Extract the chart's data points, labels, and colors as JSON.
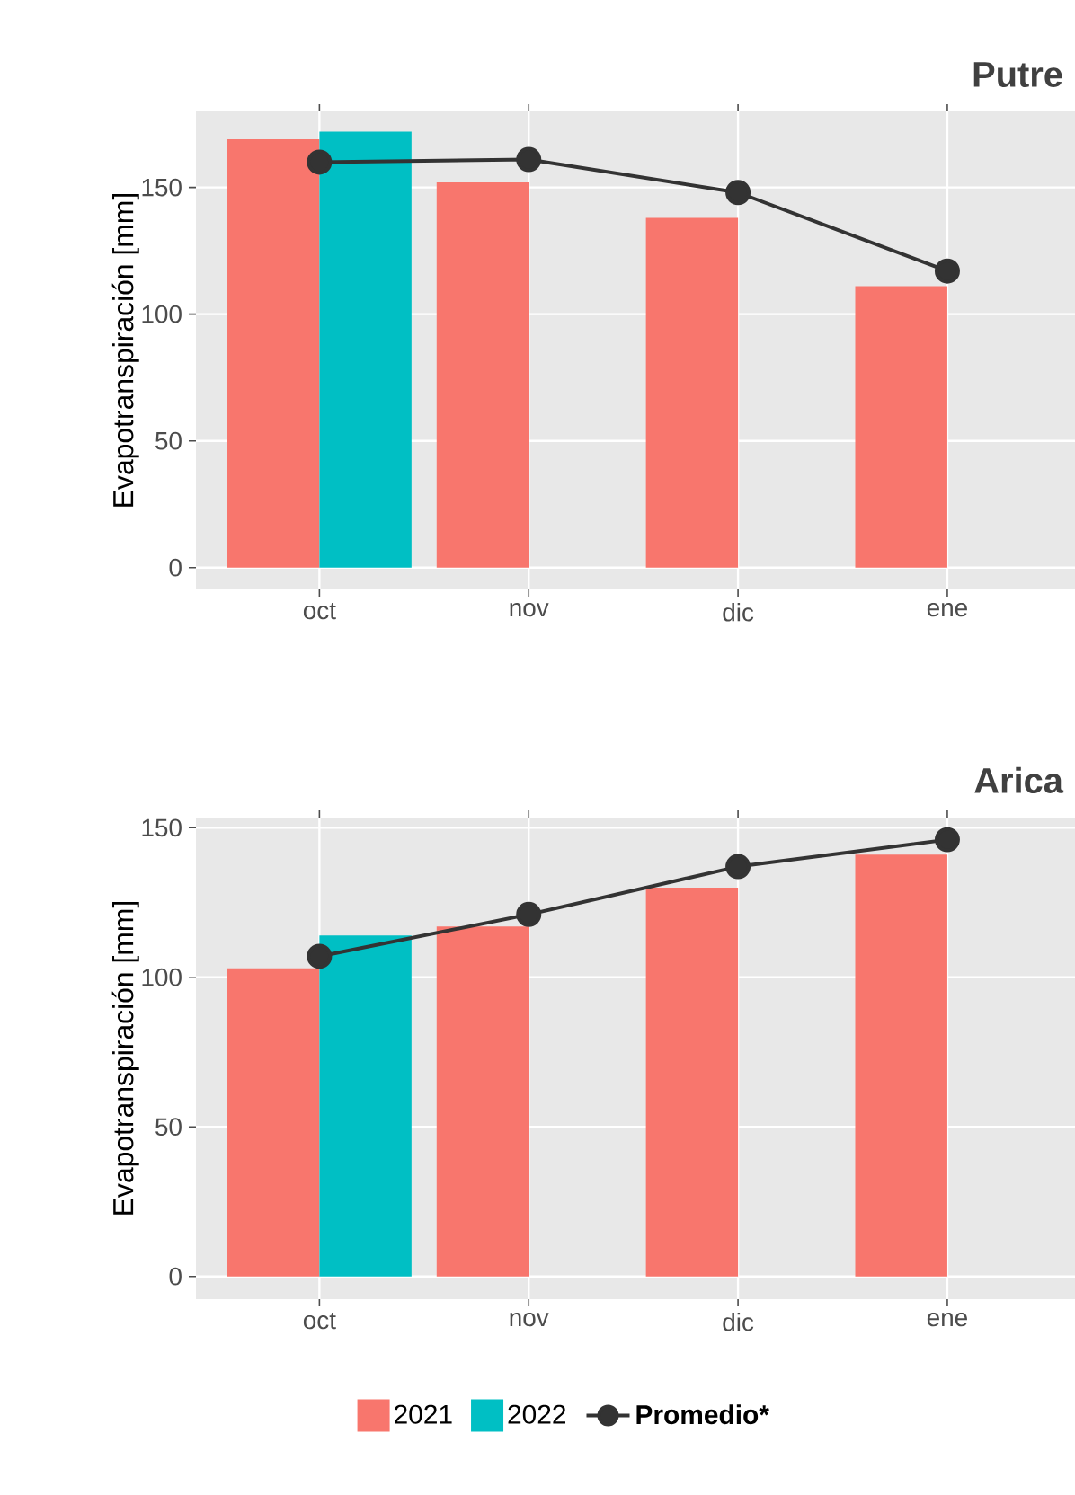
{
  "chart_data": [
    {
      "type": "bar",
      "title": "Putre",
      "ylabel": "Evapotranspiración [mm]",
      "categories": [
        "oct",
        "nov",
        "dic",
        "ene"
      ],
      "series": [
        {
          "color": "#f8766d",
          "values": [
            169,
            152,
            138,
            111
          ]
        },
        {
          "color": "#00bfc4",
          "values": [
            172,
            null,
            null,
            null
          ]
        },
        {
          "type": "line",
          "color": "#333333",
          "marker": "circle",
          "values": [
            160,
            161,
            148,
            117
          ]
        }
      ],
      "ylim": [
        -8.6,
        180
      ],
      "yticks": [
        0,
        50,
        100,
        150
      ],
      "grid": true
    },
    {
      "type": "bar",
      "title": "Arica",
      "ylabel": "Evapotranspiración [mm]",
      "categories": [
        "oct",
        "nov",
        "dic",
        "ene"
      ],
      "series": [
        {
          "name": "2021",
          "color": "#f8766d",
          "values": [
            103,
            117,
            130,
            141
          ]
        },
        {
          "name": "2022",
          "color": "#00bfc4",
          "values": [
            114,
            null,
            null,
            null
          ]
        },
        {
          "name": "Promedio*",
          "type": "line",
          "color": "#333333",
          "marker": "circle",
          "values": [
            107,
            121,
            137,
            146
          ]
        }
      ],
      "ylim": [
        -7.6,
        153.4
      ],
      "yticks": [
        0,
        50,
        100,
        150
      ],
      "grid": true,
      "legend": "bottom"
    }
  ]
}
